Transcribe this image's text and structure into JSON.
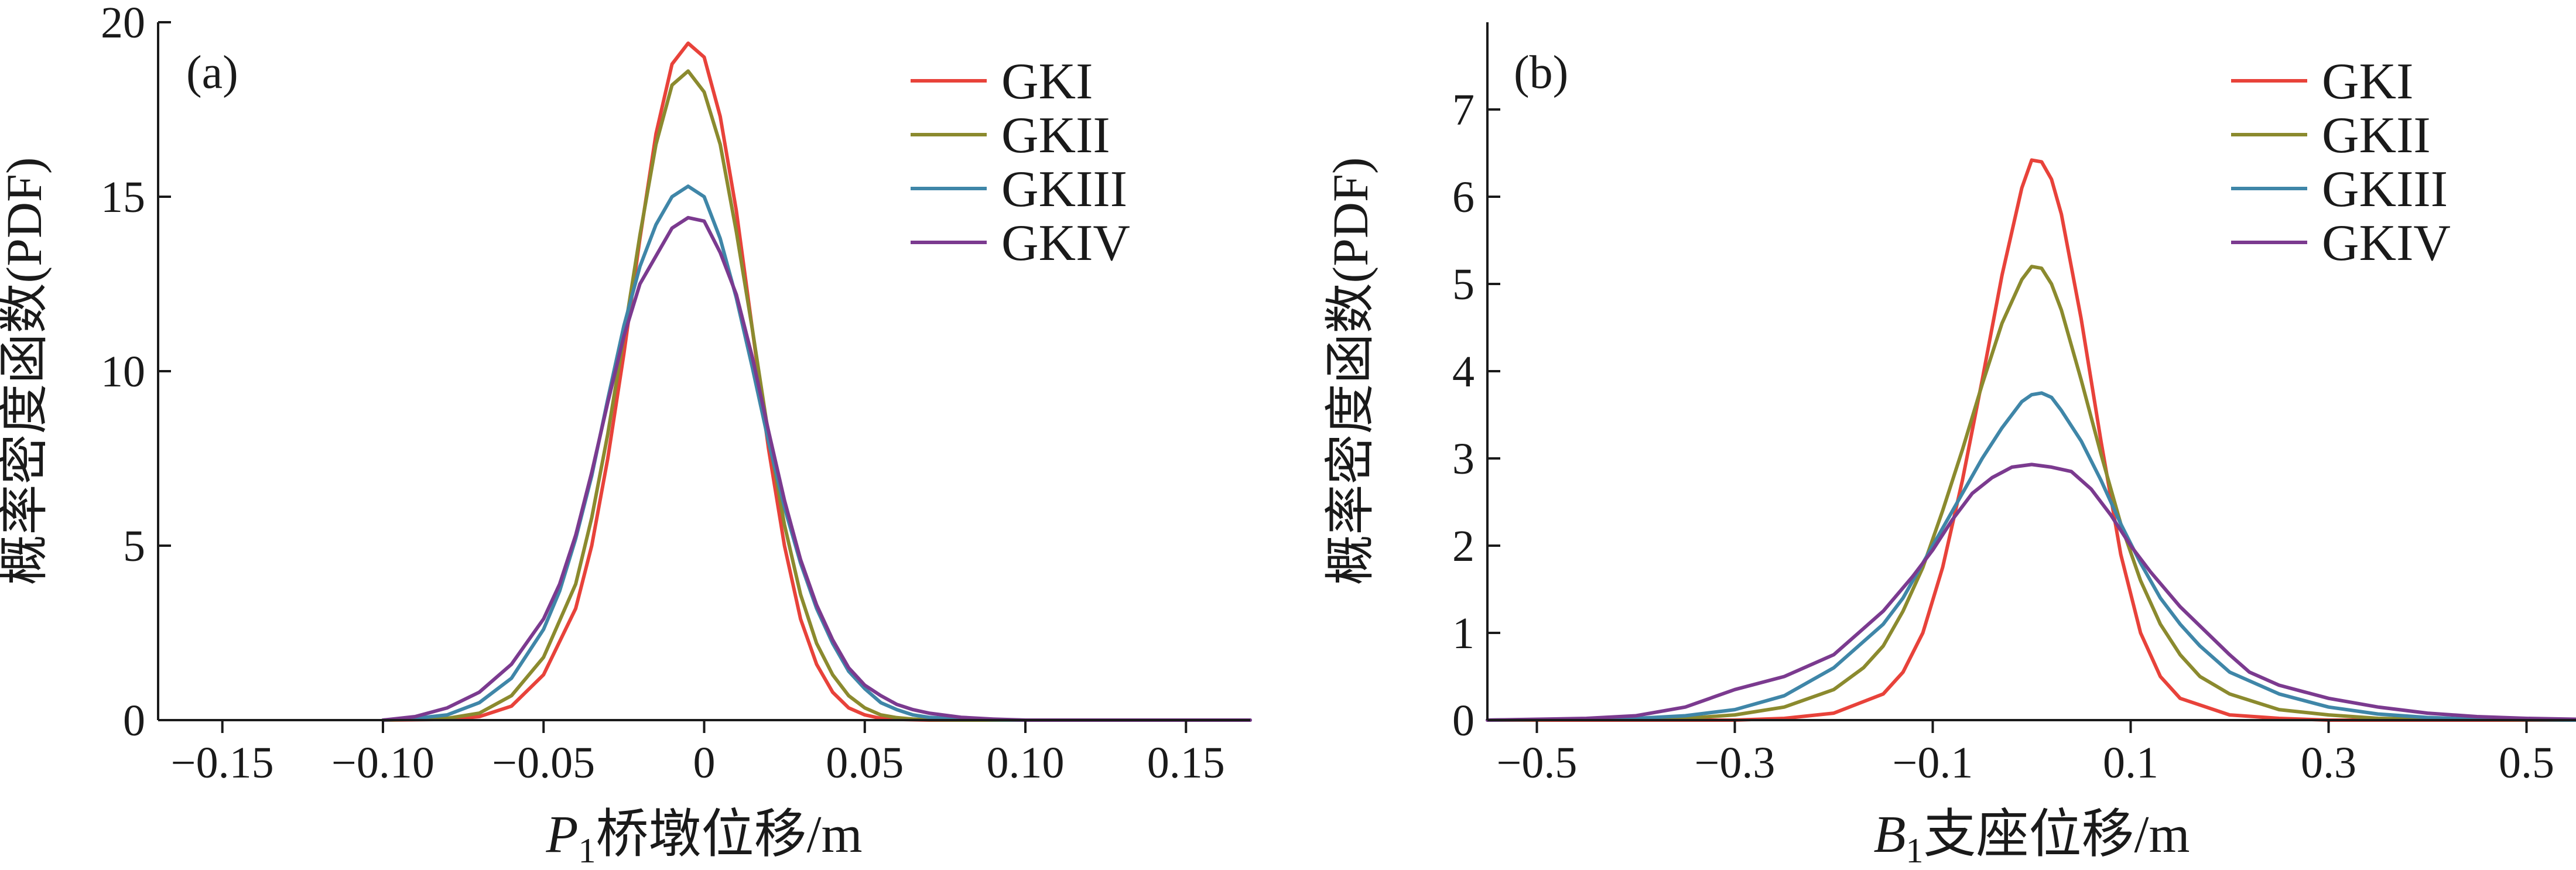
{
  "chart_data": [
    {
      "type": "line",
      "panel_label": "(a)",
      "title": "",
      "ylabel": "概率密度函数(PDF)",
      "xlabel": {
        "symbol": "P",
        "subscript": "1",
        "text": "桥墩位移/m"
      },
      "xlim": [
        -0.17,
        0.17
      ],
      "ylim": [
        0,
        20
      ],
      "x_ticks": [
        -0.15,
        -0.1,
        -0.05,
        0,
        0.05,
        0.1,
        0.15
      ],
      "x_tick_labels": [
        "−0.15",
        "−0.10",
        "−0.05",
        "0",
        "0.05",
        "0.10",
        "0.15"
      ],
      "y_ticks": [
        0,
        5,
        10,
        15,
        20
      ],
      "y_tick_labels": [
        "0",
        "5",
        "10",
        "15",
        "20"
      ],
      "legend_position": "top-right",
      "grid": false,
      "series": [
        {
          "name": "GKI",
          "color": "#e8423a",
          "x": [
            -0.1,
            -0.08,
            -0.07,
            -0.06,
            -0.05,
            -0.04,
            -0.035,
            -0.03,
            -0.025,
            -0.02,
            -0.015,
            -0.01,
            -0.005,
            0,
            0.005,
            0.01,
            0.015,
            0.02,
            0.025,
            0.03,
            0.035,
            0.04,
            0.045,
            0.05,
            0.055,
            0.06,
            0.07,
            0.08,
            0.1,
            0.17
          ],
          "y": [
            0,
            0.02,
            0.1,
            0.4,
            1.3,
            3.2,
            5.0,
            7.5,
            10.5,
            13.8,
            16.8,
            18.8,
            19.4,
            19.0,
            17.3,
            14.6,
            11.2,
            7.8,
            5.0,
            2.9,
            1.6,
            0.8,
            0.35,
            0.15,
            0.05,
            0.02,
            0,
            0,
            0,
            0
          ]
        },
        {
          "name": "GKII",
          "color": "#8b8a2e",
          "x": [
            -0.1,
            -0.08,
            -0.07,
            -0.06,
            -0.05,
            -0.04,
            -0.035,
            -0.03,
            -0.025,
            -0.02,
            -0.015,
            -0.01,
            -0.005,
            0,
            0.005,
            0.01,
            0.015,
            0.02,
            0.025,
            0.03,
            0.035,
            0.04,
            0.045,
            0.05,
            0.055,
            0.06,
            0.065,
            0.07,
            0.08,
            0.1,
            0.17
          ],
          "y": [
            0,
            0.05,
            0.2,
            0.7,
            1.8,
            3.9,
            5.8,
            8.2,
            11.0,
            13.9,
            16.5,
            18.2,
            18.6,
            18.0,
            16.5,
            14.0,
            11.2,
            8.2,
            5.6,
            3.6,
            2.2,
            1.3,
            0.7,
            0.35,
            0.15,
            0.07,
            0.03,
            0.01,
            0,
            0,
            0
          ]
        },
        {
          "name": "GKIII",
          "color": "#3f86a8",
          "x": [
            -0.1,
            -0.09,
            -0.08,
            -0.07,
            -0.06,
            -0.05,
            -0.045,
            -0.04,
            -0.035,
            -0.03,
            -0.025,
            -0.02,
            -0.015,
            -0.01,
            -0.005,
            0,
            0.005,
            0.01,
            0.015,
            0.02,
            0.025,
            0.03,
            0.035,
            0.04,
            0.045,
            0.05,
            0.055,
            0.06,
            0.065,
            0.07,
            0.08,
            0.09,
            0.1,
            0.17
          ],
          "y": [
            0,
            0.05,
            0.15,
            0.5,
            1.2,
            2.6,
            3.7,
            5.2,
            7.0,
            9.2,
            11.3,
            13.0,
            14.2,
            15.0,
            15.3,
            15.0,
            13.8,
            12.1,
            10.1,
            8.0,
            6.1,
            4.5,
            3.2,
            2.2,
            1.4,
            0.9,
            0.5,
            0.3,
            0.15,
            0.08,
            0.03,
            0.01,
            0,
            0
          ]
        },
        {
          "name": "GKIV",
          "color": "#7b3a8f",
          "x": [
            -0.1,
            -0.09,
            -0.08,
            -0.07,
            -0.06,
            -0.05,
            -0.045,
            -0.04,
            -0.035,
            -0.03,
            -0.025,
            -0.02,
            -0.015,
            -0.01,
            -0.005,
            0,
            0.005,
            0.01,
            0.015,
            0.02,
            0.025,
            0.03,
            0.035,
            0.04,
            0.045,
            0.05,
            0.055,
            0.06,
            0.065,
            0.07,
            0.08,
            0.09,
            0.1,
            0.17
          ],
          "y": [
            0,
            0.1,
            0.35,
            0.8,
            1.6,
            2.9,
            3.9,
            5.3,
            7.1,
            9.1,
            11.0,
            12.5,
            13.3,
            14.1,
            14.4,
            14.3,
            13.4,
            12.2,
            10.4,
            8.3,
            6.3,
            4.6,
            3.3,
            2.3,
            1.5,
            1.0,
            0.7,
            0.45,
            0.3,
            0.2,
            0.08,
            0.03,
            0,
            0
          ]
        }
      ]
    },
    {
      "type": "line",
      "panel_label": "(b)",
      "title": "",
      "ylabel": "概率密度函数(PDF)",
      "xlabel": {
        "symbol": "B",
        "subscript": "1",
        "text": "支座位移/m"
      },
      "xlim": [
        -0.55,
        0.55
      ],
      "ylim": [
        0,
        8
      ],
      "x_ticks": [
        -0.5,
        -0.3,
        -0.1,
        0.1,
        0.3,
        0.5
      ],
      "x_tick_labels": [
        "−0.5",
        "−0.3",
        "−0.1",
        "0.1",
        "0.3",
        "0.5"
      ],
      "y_ticks": [
        0,
        1,
        2,
        3,
        4,
        5,
        6,
        7
      ],
      "y_tick_labels": [
        "0",
        "1",
        "2",
        "3",
        "4",
        "5",
        "6",
        "7"
      ],
      "legend_position": "top-right",
      "grid": false,
      "series": [
        {
          "name": "GKI",
          "color": "#e8423a",
          "x": [
            -0.55,
            -0.3,
            -0.25,
            -0.2,
            -0.15,
            -0.13,
            -0.11,
            -0.09,
            -0.07,
            -0.05,
            -0.03,
            -0.01,
            0,
            0.01,
            0.02,
            0.03,
            0.05,
            0.07,
            0.09,
            0.11,
            0.13,
            0.15,
            0.2,
            0.25,
            0.3,
            0.55
          ],
          "y": [
            0,
            0,
            0.02,
            0.08,
            0.3,
            0.55,
            1.0,
            1.75,
            2.75,
            3.9,
            5.1,
            6.1,
            6.42,
            6.4,
            6.2,
            5.8,
            4.6,
            3.2,
            1.9,
            1.0,
            0.5,
            0.25,
            0.06,
            0.02,
            0,
            0
          ]
        },
        {
          "name": "GKII",
          "color": "#8b8a2e",
          "x": [
            -0.55,
            -0.35,
            -0.3,
            -0.25,
            -0.2,
            -0.17,
            -0.15,
            -0.13,
            -0.11,
            -0.09,
            -0.07,
            -0.05,
            -0.03,
            -0.01,
            0,
            0.01,
            0.02,
            0.03,
            0.05,
            0.07,
            0.09,
            0.11,
            0.13,
            0.15,
            0.17,
            0.2,
            0.25,
            0.3,
            0.35,
            0.4,
            0.55
          ],
          "y": [
            0,
            0.02,
            0.06,
            0.15,
            0.35,
            0.6,
            0.85,
            1.25,
            1.75,
            2.4,
            3.1,
            3.85,
            4.55,
            5.05,
            5.2,
            5.18,
            5.0,
            4.7,
            3.9,
            3.05,
            2.25,
            1.6,
            1.1,
            0.75,
            0.5,
            0.3,
            0.12,
            0.06,
            0.02,
            0.01,
            0
          ]
        },
        {
          "name": "GKIII",
          "color": "#3f86a8",
          "x": [
            -0.55,
            -0.4,
            -0.35,
            -0.3,
            -0.25,
            -0.2,
            -0.15,
            -0.13,
            -0.11,
            -0.09,
            -0.07,
            -0.05,
            -0.03,
            -0.01,
            0,
            0.01,
            0.02,
            0.03,
            0.05,
            0.07,
            0.09,
            0.11,
            0.13,
            0.15,
            0.17,
            0.2,
            0.25,
            0.3,
            0.35,
            0.4,
            0.45,
            0.55
          ],
          "y": [
            0,
            0.02,
            0.05,
            0.12,
            0.28,
            0.6,
            1.1,
            1.4,
            1.8,
            2.2,
            2.6,
            3.0,
            3.35,
            3.65,
            3.73,
            3.75,
            3.7,
            3.55,
            3.2,
            2.75,
            2.25,
            1.8,
            1.4,
            1.1,
            0.85,
            0.55,
            0.3,
            0.15,
            0.07,
            0.03,
            0.01,
            0
          ]
        },
        {
          "name": "GKIV",
          "color": "#7b3a8f",
          "x": [
            -0.55,
            -0.45,
            -0.4,
            -0.35,
            -0.3,
            -0.25,
            -0.2,
            -0.15,
            -0.12,
            -0.1,
            -0.08,
            -0.06,
            -0.04,
            -0.02,
            0,
            0.02,
            0.04,
            0.06,
            0.08,
            0.1,
            0.12,
            0.15,
            0.2,
            0.22,
            0.25,
            0.3,
            0.35,
            0.4,
            0.45,
            0.5,
            0.55
          ],
          "y": [
            0,
            0.02,
            0.05,
            0.15,
            0.35,
            0.5,
            0.75,
            1.25,
            1.65,
            1.95,
            2.3,
            2.6,
            2.78,
            2.9,
            2.93,
            2.9,
            2.85,
            2.65,
            2.35,
            2.0,
            1.7,
            1.3,
            0.75,
            0.55,
            0.4,
            0.25,
            0.15,
            0.08,
            0.04,
            0.02,
            0.01
          ]
        }
      ]
    }
  ]
}
